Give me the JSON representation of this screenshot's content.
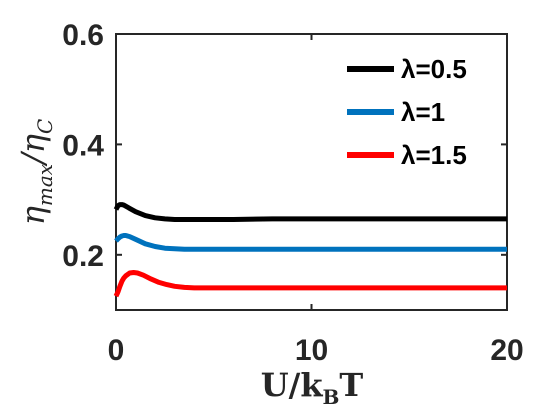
{
  "chart_data": {
    "type": "line",
    "title": "",
    "xlabel": "U/k_B T",
    "ylabel": "η_max/η_C",
    "xlim": [
      0,
      20
    ],
    "ylim": [
      0.1,
      0.6
    ],
    "xticks": [
      "0",
      "10",
      "20"
    ],
    "yticks": [
      "0.2",
      "0.4",
      "0.6"
    ],
    "legend_position": "top-right",
    "grid": false,
    "series": [
      {
        "name": "λ=0.5",
        "color": "#000000",
        "x": [
          0,
          0.1,
          0.2,
          0.3,
          0.4,
          0.5,
          0.7,
          1.0,
          1.5,
          2.0,
          2.5,
          3.0,
          3.5,
          4.0,
          5.0,
          6.0,
          8.0,
          10.0,
          12.0,
          15.0,
          18.0,
          20.0
        ],
        "y": [
          0.282,
          0.289,
          0.291,
          0.291,
          0.29,
          0.288,
          0.284,
          0.278,
          0.271,
          0.267,
          0.265,
          0.264,
          0.264,
          0.264,
          0.264,
          0.264,
          0.265,
          0.265,
          0.265,
          0.265,
          0.265,
          0.265
        ]
      },
      {
        "name": "λ=1",
        "color": "#0072BD",
        "x": [
          0,
          0.1,
          0.2,
          0.3,
          0.4,
          0.5,
          0.7,
          1.0,
          1.5,
          2.0,
          2.5,
          3.0,
          3.5,
          4.0,
          5.0,
          6.0,
          8.0,
          10.0,
          12.0,
          15.0,
          18.0,
          20.0
        ],
        "y": [
          0.225,
          0.229,
          0.232,
          0.234,
          0.235,
          0.235,
          0.233,
          0.228,
          0.22,
          0.215,
          0.212,
          0.211,
          0.21,
          0.21,
          0.21,
          0.21,
          0.21,
          0.21,
          0.21,
          0.21,
          0.21,
          0.21
        ]
      },
      {
        "name": "λ=1.5",
        "color": "#FF0000",
        "x": [
          0,
          0.1,
          0.2,
          0.3,
          0.4,
          0.5,
          0.7,
          0.9,
          1.1,
          1.4,
          1.8,
          2.2,
          2.6,
          3.0,
          3.5,
          4.0,
          5.0,
          6.0,
          8.0,
          10.0,
          12.0,
          15.0,
          18.0,
          20.0
        ],
        "y": [
          0.125,
          0.133,
          0.143,
          0.152,
          0.158,
          0.162,
          0.167,
          0.168,
          0.167,
          0.163,
          0.156,
          0.15,
          0.146,
          0.143,
          0.141,
          0.14,
          0.14,
          0.14,
          0.14,
          0.14,
          0.14,
          0.14,
          0.14,
          0.14
        ]
      }
    ]
  }
}
